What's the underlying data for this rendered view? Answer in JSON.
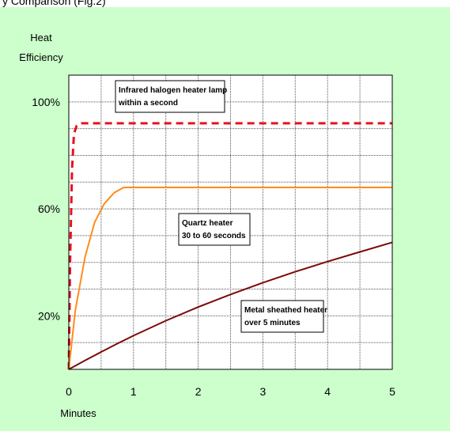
{
  "header": {
    "cropped_text": "y Comparison (Fig.2)"
  },
  "chart_data": {
    "type": "line",
    "ylabel": [
      "Heat",
      "Efficiency"
    ],
    "xlabel": "Minutes",
    "xlim": [
      0,
      5
    ],
    "ylim": [
      0,
      110
    ],
    "x_ticks": [
      0,
      1,
      2,
      3,
      4,
      5
    ],
    "x_tick_labels": [
      "0",
      "1",
      "2",
      "3",
      "4",
      "5"
    ],
    "y_ticks": [
      20,
      60,
      100
    ],
    "y_tick_labels": [
      "20%",
      "60%",
      "100%"
    ],
    "grid": true,
    "series": [
      {
        "key": "infrared",
        "color": "#e8111f",
        "dashed": true,
        "points": [
          [
            0,
            0
          ],
          [
            0.02,
            40
          ],
          [
            0.05,
            75
          ],
          [
            0.08,
            88
          ],
          [
            0.12,
            91
          ],
          [
            0.2,
            92
          ],
          [
            0.3,
            92
          ],
          [
            1,
            92
          ],
          [
            2,
            92
          ],
          [
            3,
            92
          ],
          [
            4,
            92
          ],
          [
            5,
            92
          ]
        ]
      },
      {
        "key": "quartz",
        "color": "#ff8c1a",
        "dashed": false,
        "points": [
          [
            0,
            0
          ],
          [
            0.1,
            22
          ],
          [
            0.25,
            42
          ],
          [
            0.4,
            55
          ],
          [
            0.55,
            62
          ],
          [
            0.7,
            66
          ],
          [
            0.85,
            68
          ],
          [
            1,
            68
          ],
          [
            2,
            68
          ],
          [
            3,
            68
          ],
          [
            4,
            68
          ],
          [
            5,
            68
          ]
        ]
      },
      {
        "key": "metal",
        "color": "#7b0a0a",
        "dashed": false,
        "points": [
          [
            0,
            0
          ],
          [
            0.25,
            3.3
          ],
          [
            0.5,
            6.5
          ],
          [
            0.75,
            9.6
          ],
          [
            1,
            12.6
          ],
          [
            1.5,
            18.2
          ],
          [
            2,
            23.3
          ],
          [
            2.5,
            28
          ],
          [
            3,
            32.4
          ],
          [
            3.5,
            36.5
          ],
          [
            4,
            40.3
          ],
          [
            4.5,
            43.9
          ],
          [
            5,
            47.5
          ]
        ]
      }
    ],
    "annotations": [
      {
        "key": "infrared",
        "lines": [
          "Infrared halogen heater lamp",
          "within a second"
        ]
      },
      {
        "key": "quartz",
        "lines": [
          "Quartz heater",
          "30 to 60 seconds"
        ]
      },
      {
        "key": "metal",
        "lines": [
          "Metal sheathed heater",
          "over 5 minutes"
        ]
      }
    ],
    "colors": {
      "background": "#ccffcc",
      "plot_area": "#ffffff",
      "grid": "#555555",
      "border": "#000000"
    }
  }
}
